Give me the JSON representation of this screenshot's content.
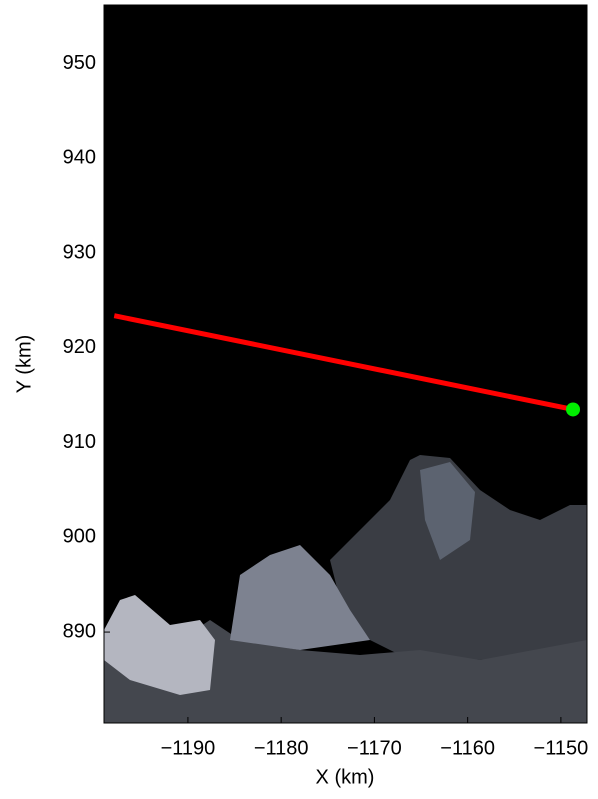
{
  "chart_data": {
    "type": "line",
    "xlabel": "X (km)",
    "ylabel": "Y (km)",
    "xlim": [
      -1199.0,
      -1147.2
    ],
    "ylim": [
      880.4,
      956.2
    ],
    "xticks": [
      {
        "value": -1190,
        "label": "−1190"
      },
      {
        "value": -1180,
        "label": "−1180"
      },
      {
        "value": -1170,
        "label": "−1170"
      },
      {
        "value": -1160,
        "label": "−1160"
      },
      {
        "value": -1150,
        "label": "−1150"
      }
    ],
    "yticks": [
      890,
      900,
      910,
      920,
      930,
      940,
      950
    ],
    "grid": false,
    "series": [
      {
        "color": "#ff0000",
        "x": [
          -1197.9,
          -1148.7
        ],
        "values": [
          923.4,
          913.5
        ]
      },
      {
        "color": "#00ee00",
        "marker": "o",
        "x": [
          -1148.7
        ],
        "values": [
          913.5
        ]
      }
    ]
  }
}
